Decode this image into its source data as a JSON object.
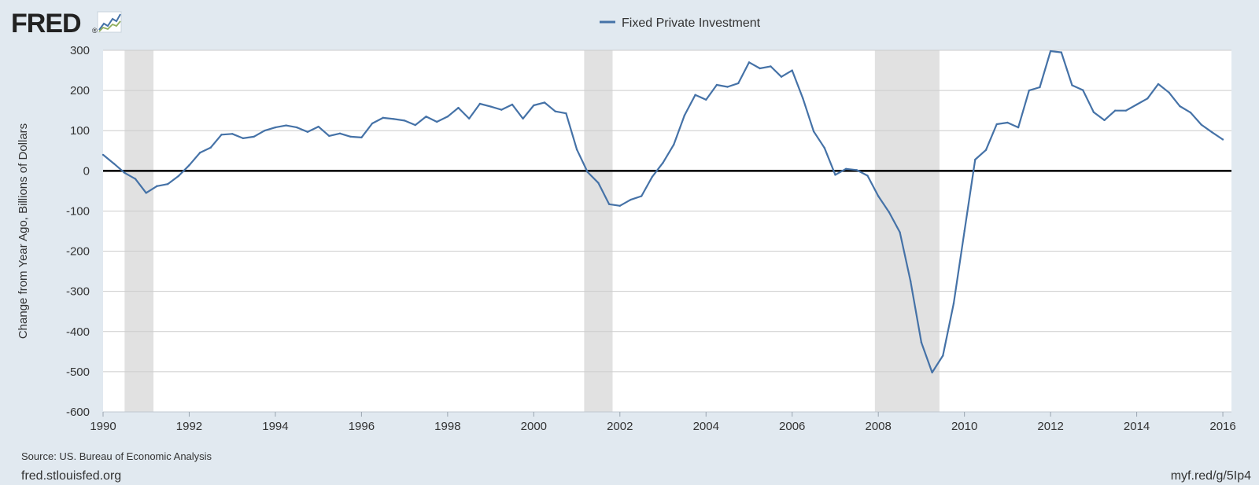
{
  "logo": {
    "text": "FRED",
    "registered": "®"
  },
  "footer": {
    "source": "Source: US. Bureau of Economic Analysis",
    "site": "fred.stlouisfed.org",
    "short_link": "myf.red/g/5Ip4"
  },
  "colors": {
    "background": "#e1e9f0",
    "plot_background": "#ffffff",
    "series": "#4572a7",
    "recession": "#e1e1e1",
    "gridline": "#cccccc",
    "zero_line": "#000000"
  },
  "chart_data": {
    "type": "line",
    "title": "",
    "xlabel": "",
    "ylabel": "Change from Year Ago, Billions of Dollars",
    "xlim": [
      1990,
      2016.2
    ],
    "ylim": [
      -600,
      300
    ],
    "x_ticks": [
      1990,
      1992,
      1994,
      1996,
      1998,
      2000,
      2002,
      2004,
      2006,
      2008,
      2010,
      2012,
      2014,
      2016
    ],
    "y_ticks": [
      300,
      200,
      100,
      0,
      -100,
      -200,
      -300,
      -400,
      -500,
      -600
    ],
    "grid": true,
    "legend": {
      "position": "top-center",
      "entries": [
        "Fixed Private Investment"
      ]
    },
    "recessions": [
      [
        1990.5,
        1991.17
      ],
      [
        2001.17,
        2001.83
      ],
      [
        2007.92,
        2009.42
      ]
    ],
    "series": [
      {
        "name": "Fixed Private Investment",
        "x": [
          1990.0,
          1990.25,
          1990.5,
          1990.75,
          1991.0,
          1991.25,
          1991.5,
          1991.75,
          1992.0,
          1992.25,
          1992.5,
          1992.75,
          1993.0,
          1993.25,
          1993.5,
          1993.75,
          1994.0,
          1994.25,
          1994.5,
          1994.75,
          1995.0,
          1995.25,
          1995.5,
          1995.75,
          1996.0,
          1996.25,
          1996.5,
          1996.75,
          1997.0,
          1997.25,
          1997.5,
          1997.75,
          1998.0,
          1998.25,
          1998.5,
          1998.75,
          1999.0,
          1999.25,
          1999.5,
          1999.75,
          2000.0,
          2000.25,
          2000.5,
          2000.75,
          2001.0,
          2001.25,
          2001.5,
          2001.75,
          2002.0,
          2002.25,
          2002.5,
          2002.75,
          2003.0,
          2003.25,
          2003.5,
          2003.75,
          2004.0,
          2004.25,
          2004.5,
          2004.75,
          2005.0,
          2005.25,
          2005.5,
          2005.75,
          2006.0,
          2006.25,
          2006.5,
          2006.75,
          2007.0,
          2007.25,
          2007.5,
          2007.75,
          2008.0,
          2008.25,
          2008.5,
          2008.75,
          2009.0,
          2009.25,
          2009.5,
          2009.75,
          2010.0,
          2010.25,
          2010.5,
          2010.75,
          2011.0,
          2011.25,
          2011.5,
          2011.75,
          2012.0,
          2012.25,
          2012.5,
          2012.75,
          2013.0,
          2013.25,
          2013.5,
          2013.75,
          2014.0,
          2014.25,
          2014.5,
          2014.75,
          2015.0,
          2015.25,
          2015.5,
          2015.75,
          2016.0
        ],
        "values": [
          40,
          18,
          -5,
          -20,
          -55,
          -38,
          -33,
          -13,
          14,
          45,
          58,
          90,
          92,
          81,
          85,
          100,
          108,
          113,
          108,
          97,
          110,
          87,
          93,
          85,
          83,
          118,
          132,
          129,
          125,
          114,
          135,
          122,
          135,
          157,
          130,
          167,
          160,
          152,
          165,
          130,
          163,
          170,
          148,
          143,
          53,
          -3,
          -30,
          -83,
          -87,
          -72,
          -63,
          -15,
          20,
          65,
          138,
          189,
          177,
          214,
          209,
          218,
          270,
          255,
          260,
          234,
          250,
          180,
          98,
          57,
          -10,
          5,
          2,
          -12,
          -63,
          -103,
          -153,
          -275,
          -427,
          -502,
          -460,
          -330,
          -150,
          28,
          52,
          116,
          120,
          108,
          200,
          208,
          298,
          295,
          213,
          201,
          146,
          126,
          150,
          150,
          165,
          180,
          216,
          195,
          161,
          145,
          115,
          96,
          78
        ]
      }
    ]
  }
}
